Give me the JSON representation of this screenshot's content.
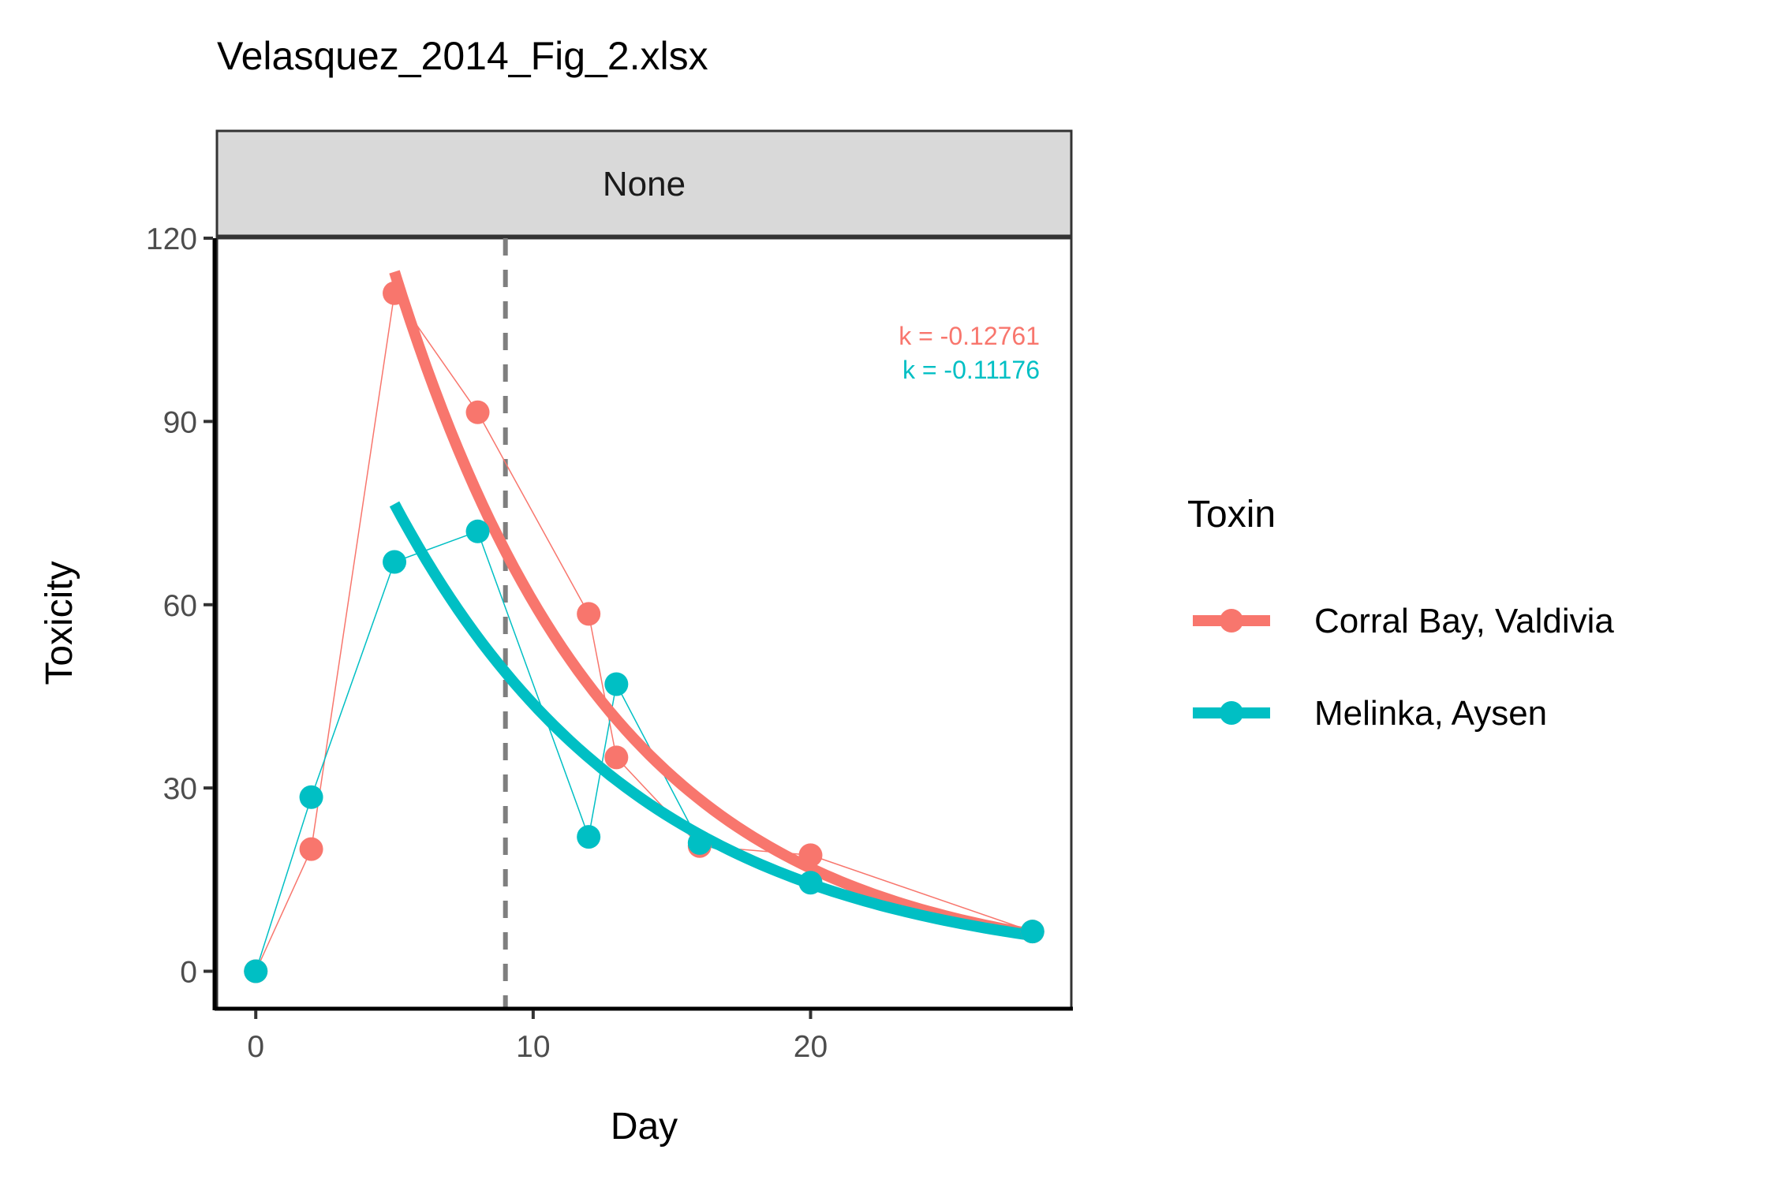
{
  "chart_data": {
    "type": "line",
    "title": "Velasquez_2014_Fig_2.xlsx",
    "facet_label": "None",
    "xlabel": "Day",
    "ylabel": "Toxicity",
    "xlim": [
      -1.4,
      29.4
    ],
    "ylim": [
      -6,
      120
    ],
    "x_ticks": [
      0,
      10,
      20
    ],
    "x_tick_labels": [
      "0",
      "10",
      "20"
    ],
    "y_ticks": [
      0,
      30,
      60,
      90,
      120
    ],
    "y_tick_labels": [
      "0",
      "30",
      "60",
      "90",
      "120"
    ],
    "grid": false,
    "vline": {
      "x": 9,
      "style": "dashed",
      "color": "#7f7f7f"
    },
    "legend": {
      "title": "Toxin",
      "placement": "right"
    },
    "series": [
      {
        "name": "Corral Bay, Valdivia",
        "color": "#F8766D",
        "x": [
          0,
          2,
          5,
          8,
          12,
          13,
          16,
          20,
          28
        ],
        "y": [
          0,
          20,
          111,
          91.5,
          58.5,
          35,
          20.5,
          19,
          6.5
        ],
        "fit": {
          "k": -0.12761,
          "label": "k = -0.12761",
          "x_start": 5,
          "x_end": 28,
          "y_start": 114.5
        }
      },
      {
        "name": "Melinka, Aysen",
        "color": "#00BFC4",
        "x": [
          0,
          2,
          5,
          8,
          12,
          13,
          16,
          20,
          28
        ],
        "y": [
          0,
          28.5,
          67,
          72,
          22,
          47,
          21,
          14.5,
          6.5
        ],
        "fit": {
          "k": -0.11176,
          "label": "k = -0.11176",
          "x_start": 5,
          "x_end": 28,
          "y_start": 76.5
        }
      }
    ]
  }
}
